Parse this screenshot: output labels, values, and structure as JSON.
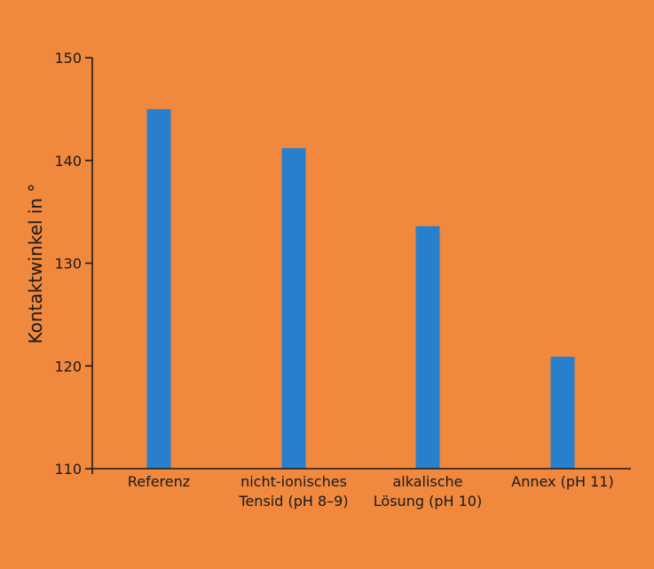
{
  "colors": {
    "background": "#F0883E",
    "bar": "#2880CC",
    "axis": "#1a1a1a",
    "text": "#1a1a1a"
  },
  "chart_data": {
    "type": "bar",
    "title": "",
    "xlabel": "",
    "ylabel": "Kontaktwinkel in °",
    "ylim": [
      110,
      150
    ],
    "yticks": [
      110,
      120,
      130,
      140,
      150
    ],
    "categories": [
      [
        "Referenz"
      ],
      [
        "nicht-ionisches",
        "Tensid (pH 8–9)"
      ],
      [
        "alkalische",
        "Lösung (pH 10)"
      ],
      [
        "Annex (pH 11)"
      ]
    ],
    "values": [
      145.0,
      141.2,
      133.6,
      120.9
    ],
    "grid": false,
    "legend": "none"
  }
}
